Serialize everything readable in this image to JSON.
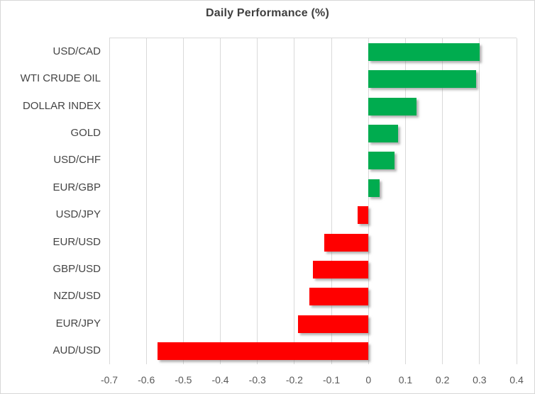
{
  "chart_data": {
    "type": "bar",
    "orientation": "horizontal",
    "title": "Daily Performance (%)",
    "categories": [
      "USD/CAD",
      "WTI CRUDE OIL",
      "DOLLAR INDEX",
      "GOLD",
      "USD/CHF",
      "EUR/GBP",
      "USD/JPY",
      "EUR/USD",
      "GBP/USD",
      "NZD/USD",
      "EUR/JPY",
      "AUD/USD"
    ],
    "values": [
      0.3,
      0.29,
      0.13,
      0.08,
      0.07,
      0.03,
      -0.03,
      -0.12,
      -0.15,
      -0.16,
      -0.19,
      -0.57
    ],
    "xlabel": "",
    "ylabel": "",
    "xlim": [
      -0.7,
      0.4
    ],
    "xtick_labels": [
      "-0.7",
      "-0.6",
      "-0.5",
      "-0.4",
      "-0.3",
      "-0.2",
      "-0.1",
      "0",
      "0.1",
      "0.2",
      "0.3",
      "0.4"
    ],
    "grid": "vertical-on",
    "legend": "none",
    "colors": {
      "positive_bar": "#00AC4F",
      "negative_bar": "#FF0000",
      "gridline": "#D9D9D9",
      "category_label": "#444444",
      "tick_label": "#595959",
      "title": "#3F3F3F",
      "frame": "#D7D7D7",
      "background": "#FFFFFF"
    }
  }
}
